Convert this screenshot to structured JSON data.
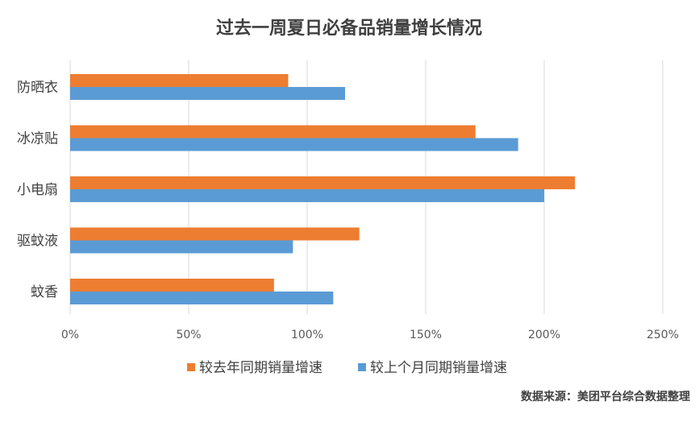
{
  "chart_data": {
    "type": "bar",
    "orientation": "horizontal",
    "title": "过去一周夏日必备品销量增长情况",
    "categories": [
      "防晒衣",
      "冰凉贴",
      "小电扇",
      "驱蚊液",
      "蚊香"
    ],
    "series": [
      {
        "name": "较去年同期销量增速",
        "values": [
          92,
          171,
          213,
          122,
          86
        ],
        "color": "#ED7D31"
      },
      {
        "name": "较上个月同期销量增速",
        "values": [
          116,
          189,
          200,
          94,
          111
        ],
        "color": "#5B9BD5"
      }
    ],
    "xlim": [
      0,
      250
    ],
    "x_ticks": [
      0,
      50,
      100,
      150,
      200,
      250
    ],
    "x_tick_labels": [
      "0%",
      "50%",
      "100%",
      "150%",
      "200%",
      "250%"
    ],
    "x_unit": "%",
    "grid": "vertical",
    "legend_position": "bottom"
  },
  "source": "数据来源：美团平台综合数据整理"
}
